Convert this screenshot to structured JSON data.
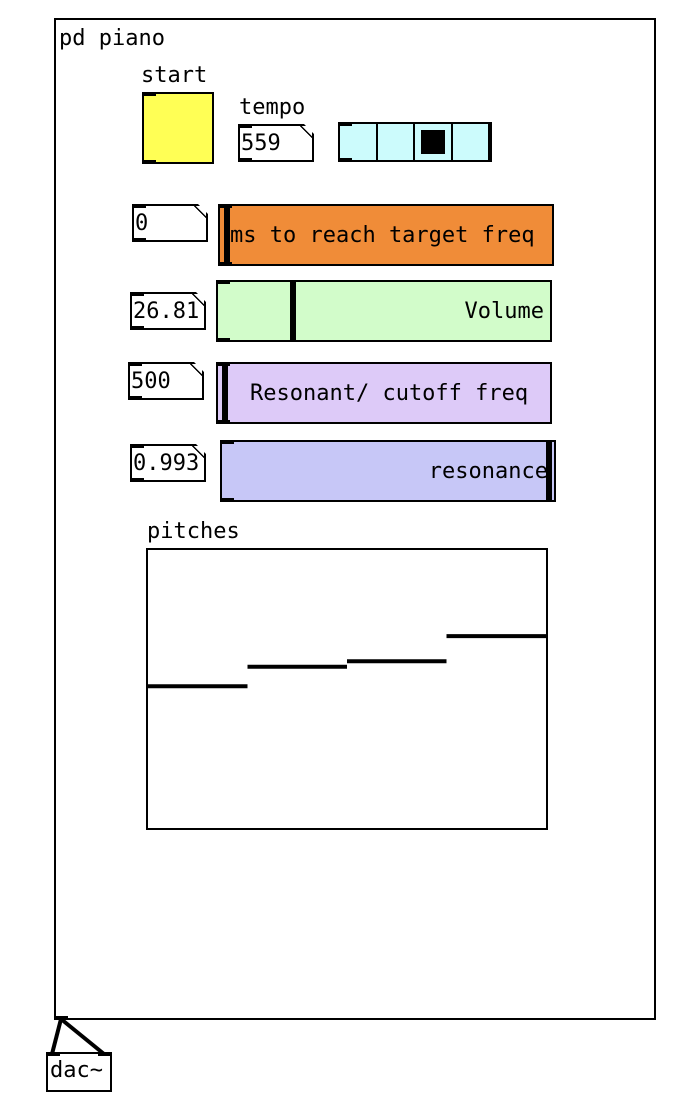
{
  "canvas": {
    "title": "pd piano"
  },
  "controls": {
    "start_label": "start",
    "tempo_label": "tempo",
    "tempo_value": "559",
    "radio": {
      "cells": 4,
      "selected": 2
    },
    "glide": {
      "value": "0",
      "label": "ms to reach target freq",
      "position": 0.0
    },
    "volume": {
      "value": "26.81",
      "label": "Volume",
      "position": 0.22
    },
    "cutoff": {
      "value": "500",
      "label": "Resonant/ cutoff freq",
      "position": 0.0
    },
    "resonance": {
      "value": "0.993",
      "label": "resonance",
      "position": 0.99
    }
  },
  "graph": {
    "label": "pitches",
    "levels": [
      0.49,
      0.42,
      0.4,
      0.31
    ]
  },
  "dac": {
    "label": "dac~"
  },
  "colors": {
    "bang": "#ffff55",
    "radio": "#ccfbfc",
    "glide": "#f08c38",
    "volume": "#d2fcca",
    "cutoff": "#ddcaf8",
    "resonance": "#c7c7f7"
  }
}
